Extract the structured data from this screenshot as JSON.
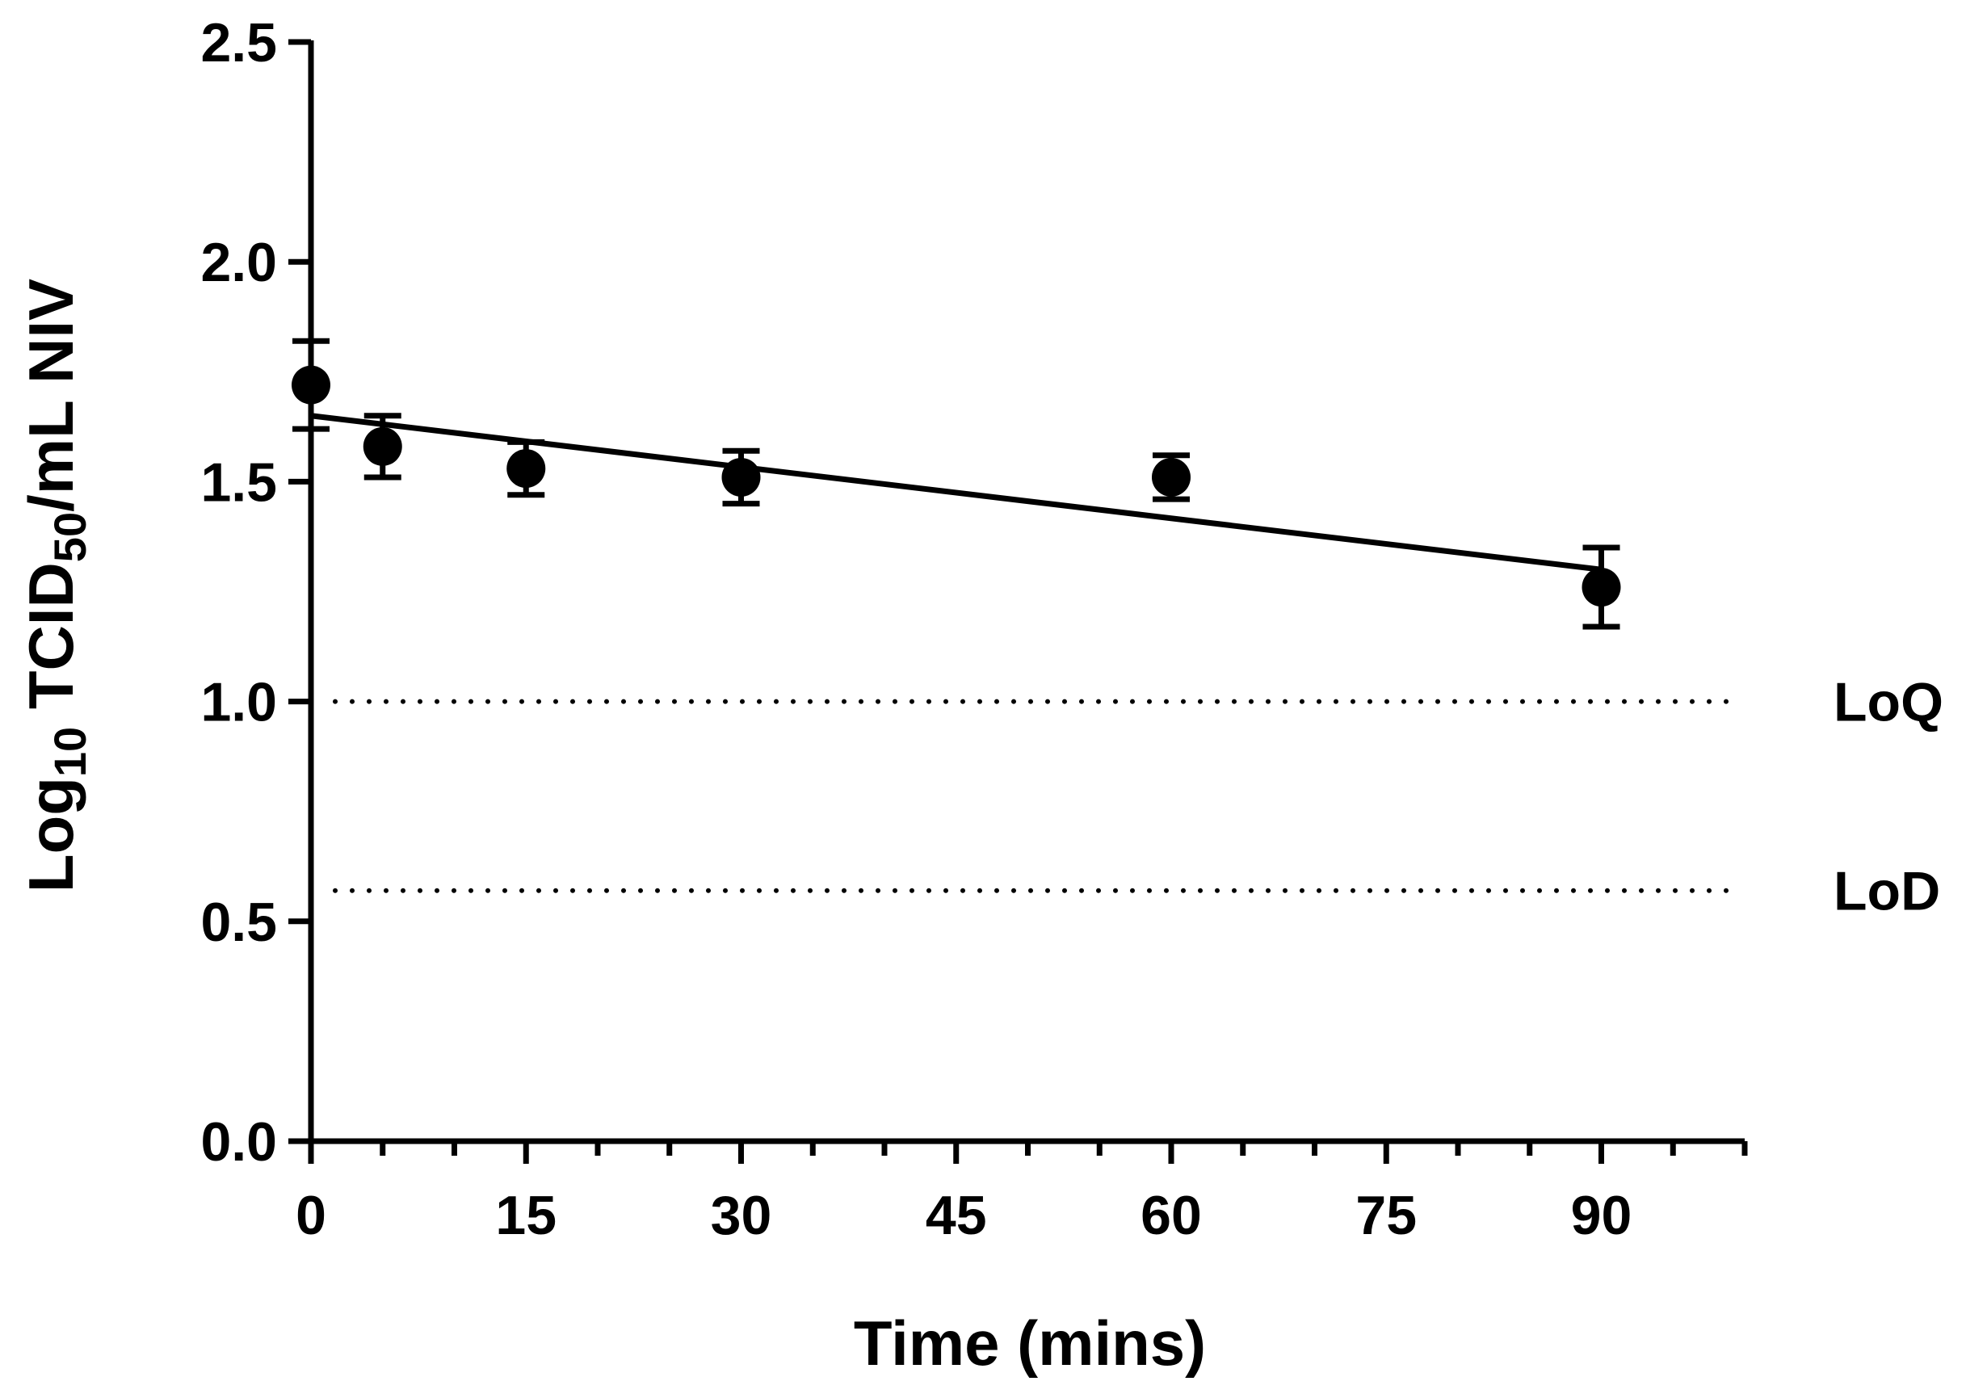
{
  "chart_data": {
    "type": "scatter",
    "title": "",
    "xlabel": "Time (mins)",
    "ylabel": {
      "prefix": "Log",
      "prefix_sub": "10",
      "main": " TCID",
      "main_sub": "50",
      "suffix": "/mL NIV"
    },
    "xlim": [
      0,
      100
    ],
    "ylim": [
      0,
      2.5
    ],
    "x_ticks": [
      0,
      15,
      30,
      45,
      60,
      75,
      90
    ],
    "x_tick_labels": [
      "0",
      "15",
      "30",
      "45",
      "60",
      "75",
      "90"
    ],
    "x_minor_step": 5,
    "y_ticks": [
      0.0,
      0.5,
      1.0,
      1.5,
      2.0,
      2.5
    ],
    "y_tick_labels": [
      "0.0",
      "0.5",
      "1.0",
      "1.5",
      "2.0",
      "2.5"
    ],
    "series": [
      {
        "name": "NIV",
        "x": [
          0,
          5,
          15,
          30,
          60,
          90
        ],
        "y": [
          1.72,
          1.58,
          1.53,
          1.51,
          1.51,
          1.26
        ],
        "error": [
          0.1,
          0.07,
          0.06,
          0.06,
          0.05,
          0.09
        ]
      }
    ],
    "fit_line": {
      "x": [
        0,
        90
      ],
      "y": [
        1.65,
        1.3
      ]
    },
    "reference_lines": [
      {
        "label": "LoQ",
        "y": 1.0
      },
      {
        "label": "LoD",
        "y": 0.57
      }
    ],
    "colors": {
      "marker": "#000000",
      "line": "#000000"
    }
  }
}
